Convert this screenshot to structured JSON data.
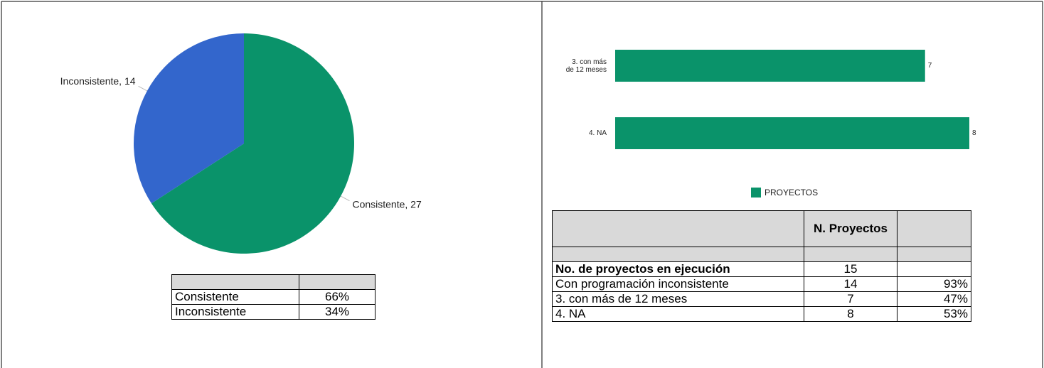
{
  "chart_data": [
    {
      "type": "pie",
      "categories": [
        "Consistente",
        "Inconsistente"
      ],
      "values": [
        27,
        14
      ],
      "value_labels": [
        "Consistente, 27",
        "Inconsistente, 14"
      ],
      "colors": [
        "#0a936a",
        "#3366cc"
      ]
    },
    {
      "type": "hbar",
      "categories": [
        "3. con más de 12 meses",
        "4. NA"
      ],
      "series": [
        {
          "name": "PROYECTOS",
          "color": "#0a936a",
          "values": [
            7,
            8
          ]
        }
      ],
      "xlim": [
        0,
        8
      ],
      "legend": "bottom"
    }
  ],
  "tables": [
    {
      "rows": [
        [
          "Consistente",
          "66%"
        ],
        [
          "Inconsistente",
          "34%"
        ]
      ]
    },
    {
      "header": "N. Proyectos",
      "rows": [
        [
          "No. de proyectos en ejecución",
          "15"
        ],
        [
          "Con programación inconsistente",
          "14",
          "93%"
        ],
        [
          "3. con más de 12 meses",
          "7",
          "47%"
        ],
        [
          "4. NA",
          "8",
          "53%"
        ]
      ]
    }
  ]
}
